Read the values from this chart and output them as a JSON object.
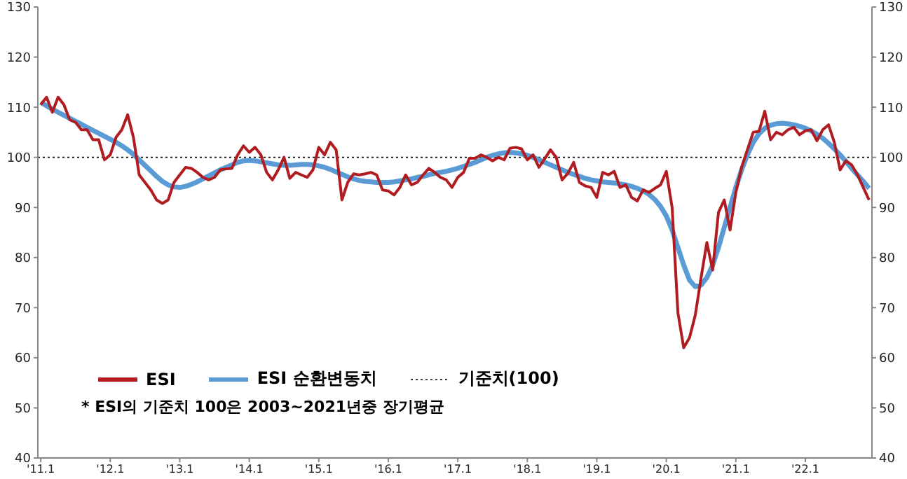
{
  "chart_data": {
    "type": "line",
    "categories": [
      "'11.1",
      null,
      null,
      null,
      null,
      null,
      null,
      null,
      null,
      null,
      null,
      null,
      "'12.1",
      null,
      null,
      null,
      null,
      null,
      null,
      null,
      null,
      null,
      null,
      null,
      "'13.1",
      null,
      null,
      null,
      null,
      null,
      null,
      null,
      null,
      null,
      null,
      null,
      "'14.1",
      null,
      null,
      null,
      null,
      null,
      null,
      null,
      null,
      null,
      null,
      null,
      "'15.1",
      null,
      null,
      null,
      null,
      null,
      null,
      null,
      null,
      null,
      null,
      null,
      "'16.1",
      null,
      null,
      null,
      null,
      null,
      null,
      null,
      null,
      null,
      null,
      null,
      "'17.1",
      null,
      null,
      null,
      null,
      null,
      null,
      null,
      null,
      null,
      null,
      null,
      "'18.1",
      null,
      null,
      null,
      null,
      null,
      null,
      null,
      null,
      null,
      null,
      null,
      "'19.1",
      null,
      null,
      null,
      null,
      null,
      null,
      null,
      null,
      null,
      null,
      null,
      "'20.1",
      null,
      null,
      null,
      null,
      null,
      null,
      null,
      null,
      null,
      null,
      null,
      "'21.1",
      null,
      null,
      null,
      null,
      null,
      null,
      null,
      null,
      null,
      null,
      null,
      "'22.1",
      null,
      null,
      null,
      null,
      null,
      null,
      null,
      null,
      null,
      null,
      null
    ],
    "series": [
      {
        "name": "ESI 순환변동치",
        "color": "#5b9bd5",
        "values": [
          111,
          110.3,
          109.6,
          109,
          108.4,
          107.8,
          107.2,
          106.6,
          106,
          105.4,
          104.8,
          104.2,
          103.6,
          103,
          102.3,
          101.5,
          100.6,
          99.5,
          98.4,
          97.3,
          96.2,
          95.2,
          94.5,
          94.1,
          94,
          94.2,
          94.6,
          95.1,
          95.7,
          96.3,
          96.9,
          97.5,
          98,
          98.5,
          99,
          99.3,
          99.4,
          99.3,
          99.1,
          98.9,
          98.7,
          98.5,
          98.4,
          98.4,
          98.5,
          98.6,
          98.6,
          98.5,
          98.3,
          98,
          97.6,
          97.1,
          96.6,
          96.1,
          95.7,
          95.4,
          95.2,
          95.1,
          95,
          95,
          95,
          95.1,
          95.3,
          95.5,
          95.7,
          96,
          96.2,
          96.5,
          96.8,
          97,
          97.2,
          97.5,
          97.8,
          98.2,
          98.6,
          99,
          99.5,
          100,
          100.4,
          100.7,
          100.9,
          101,
          100.9,
          100.7,
          100.4,
          100,
          99.5,
          99,
          98.5,
          98,
          97.5,
          97,
          96.6,
          96.2,
          95.8,
          95.5,
          95.3,
          95.1,
          95,
          94.9,
          94.7,
          94.5,
          94.2,
          93.8,
          93.3,
          92.6,
          91.6,
          90.2,
          88.3,
          85.5,
          82,
          78.5,
          75.5,
          74.2,
          74.5,
          76,
          78.5,
          82,
          86,
          90,
          94,
          97.5,
          100.5,
          103,
          104.7,
          105.8,
          106.4,
          106.7,
          106.8,
          106.7,
          106.5,
          106.2,
          105.8,
          105.3,
          104.6,
          103.8,
          102.8,
          101.7,
          100.5,
          99.2,
          97.8,
          96.5,
          95.2,
          93.8
        ]
      },
      {
        "name": "ESI",
        "color": "#b01c20",
        "values": [
          110.5,
          112,
          109,
          112,
          110.5,
          107.5,
          107,
          105.5,
          105.5,
          103.5,
          103.5,
          99.5,
          100.5,
          104,
          105.5,
          108.5,
          104,
          96.5,
          95,
          93.5,
          91.5,
          90.8,
          91.5,
          95,
          96.5,
          98,
          97.8,
          97,
          96,
          95.5,
          96,
          97.5,
          97.7,
          97.8,
          100.5,
          102.3,
          101,
          102,
          100.5,
          97,
          95.5,
          97.5,
          100,
          95.8,
          97,
          96.5,
          96,
          97.5,
          102,
          100.5,
          103,
          101.5,
          91.5,
          95,
          96.7,
          96.5,
          96.7,
          97,
          96.5,
          93.5,
          93.3,
          92.5,
          94,
          96.5,
          94.5,
          95,
          96.5,
          97.8,
          97,
          96,
          95.5,
          94,
          96,
          97,
          99.8,
          99.8,
          100.5,
          100,
          99.3,
          100,
          99.5,
          101.8,
          102,
          101.7,
          99.5,
          100.5,
          98,
          99.7,
          101.5,
          100,
          95.5,
          96.8,
          99,
          95,
          94.3,
          94,
          92,
          97,
          96.5,
          97.2,
          94,
          94.5,
          92,
          91.3,
          93.5,
          93,
          93.8,
          94.5,
          97.2,
          90,
          69,
          62,
          64,
          68.5,
          76,
          83,
          77.5,
          89,
          91.5,
          85.5,
          93,
          98,
          101.5,
          105,
          105.2,
          109.2,
          103.5,
          105,
          104.5,
          105.5,
          106,
          104.5,
          105.3,
          105.5,
          103.3,
          105.5,
          106.5,
          103,
          97.5,
          99.3,
          98.5,
          96.5,
          94,
          91.5
        ]
      }
    ],
    "ylim": [
      40,
      130
    ],
    "yticks": [
      40,
      50,
      60,
      70,
      80,
      90,
      100,
      110,
      120,
      130
    ],
    "y2lim": [
      40,
      130
    ],
    "y2ticks": [
      40,
      50,
      60,
      70,
      80,
      90,
      100,
      110,
      120,
      130
    ],
    "ref_lines": [
      {
        "axis": "y",
        "value": 100,
        "label": "기준치(100)",
        "color": "#000000",
        "line_style": "dotted"
      }
    ],
    "annotations": [
      "* ESI의 기준치 100은 2003~2021년중 장기평균"
    ],
    "legend": "bottom left",
    "grid": false,
    "marker": "none",
    "line_style": "solid"
  }
}
